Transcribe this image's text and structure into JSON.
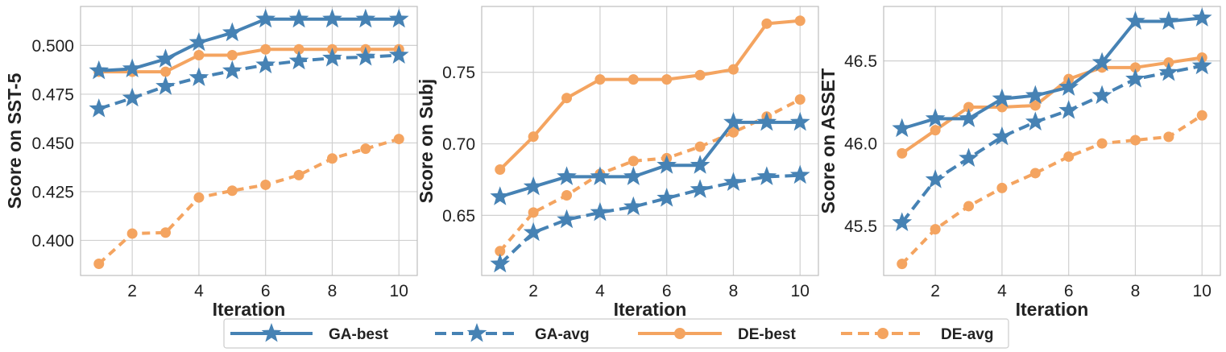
{
  "colors": {
    "ga": "#4682b4",
    "de": "#f4a460"
  },
  "legend": {
    "ga_best": "GA-best",
    "ga_avg": "GA-avg",
    "de_best": "DE-best",
    "de_avg": "DE-avg"
  },
  "chart_data": [
    {
      "type": "line",
      "xlabel": "Iteration",
      "ylabel": "Score on SST-5",
      "x": [
        1,
        2,
        3,
        4,
        5,
        6,
        7,
        8,
        9,
        10
      ],
      "xticks": [
        "2",
        "4",
        "6",
        "8",
        "10"
      ],
      "xlim": [
        0.45,
        10.55
      ],
      "ylim": [
        0.382,
        0.52
      ],
      "yticks": [
        "0.400",
        "0.425",
        "0.450",
        "0.475",
        "0.500"
      ],
      "series": [
        {
          "name": "GA-best",
          "values": [
            0.487,
            0.488,
            0.493,
            0.5015,
            0.5065,
            0.5135,
            0.5135,
            0.5135,
            0.5135,
            0.5135
          ]
        },
        {
          "name": "GA-avg",
          "values": [
            0.4675,
            0.473,
            0.479,
            0.4835,
            0.487,
            0.49,
            0.492,
            0.4935,
            0.494,
            0.495
          ]
        },
        {
          "name": "DE-best",
          "values": [
            0.4865,
            0.4865,
            0.4865,
            0.495,
            0.495,
            0.498,
            0.498,
            0.498,
            0.498,
            0.498
          ]
        },
        {
          "name": "DE-avg",
          "values": [
            0.388,
            0.4035,
            0.404,
            0.422,
            0.4255,
            0.4285,
            0.4335,
            0.442,
            0.447,
            0.452
          ]
        }
      ]
    },
    {
      "type": "line",
      "xlabel": "Iteration",
      "ylabel": "Score on Subj",
      "x": [
        1,
        2,
        3,
        4,
        5,
        6,
        7,
        8,
        9,
        10
      ],
      "xticks": [
        "2",
        "4",
        "6",
        "8",
        "10"
      ],
      "xlim": [
        0.45,
        10.55
      ],
      "ylim": [
        0.608,
        0.796
      ],
      "yticks": [
        "0.65",
        "0.70",
        "0.75"
      ],
      "series": [
        {
          "name": "GA-best",
          "values": [
            0.663,
            0.67,
            0.677,
            0.677,
            0.677,
            0.685,
            0.685,
            0.715,
            0.715,
            0.715
          ]
        },
        {
          "name": "GA-avg",
          "values": [
            0.616,
            0.638,
            0.647,
            0.652,
            0.656,
            0.662,
            0.668,
            0.673,
            0.677,
            0.678
          ]
        },
        {
          "name": "DE-best",
          "values": [
            0.682,
            0.705,
            0.732,
            0.745,
            0.745,
            0.745,
            0.748,
            0.752,
            0.784,
            0.786
          ]
        },
        {
          "name": "DE-avg",
          "values": [
            0.625,
            0.652,
            0.664,
            0.679,
            0.688,
            0.69,
            0.698,
            0.708,
            0.719,
            0.731
          ]
        }
      ]
    },
    {
      "type": "line",
      "xlabel": "Iteration",
      "ylabel": "Score on ASSET",
      "x": [
        1,
        2,
        3,
        4,
        5,
        6,
        7,
        8,
        9,
        10
      ],
      "xticks": [
        "2",
        "4",
        "6",
        "8",
        "10"
      ],
      "xlim": [
        0.45,
        10.55
      ],
      "ylim": [
        45.2,
        46.83
      ],
      "yticks": [
        "45.5",
        "46.0",
        "46.5"
      ],
      "series": [
        {
          "name": "GA-best",
          "values": [
            46.09,
            46.15,
            46.15,
            46.27,
            46.29,
            46.34,
            46.49,
            46.74,
            46.74,
            46.76
          ]
        },
        {
          "name": "GA-avg",
          "values": [
            45.52,
            45.78,
            45.91,
            46.04,
            46.13,
            46.2,
            46.29,
            46.39,
            46.43,
            46.47
          ]
        },
        {
          "name": "DE-best",
          "values": [
            45.94,
            46.08,
            46.22,
            46.22,
            46.23,
            46.39,
            46.46,
            46.46,
            46.49,
            46.52
          ]
        },
        {
          "name": "DE-avg",
          "values": [
            45.27,
            45.48,
            45.62,
            45.73,
            45.82,
            45.92,
            46.0,
            46.02,
            46.04,
            46.17
          ]
        }
      ]
    }
  ]
}
